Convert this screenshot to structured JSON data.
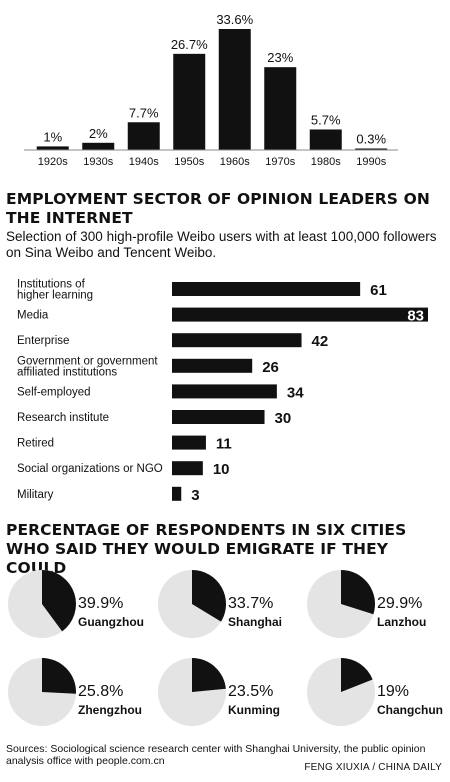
{
  "charts": {
    "decades": {
      "type": "bar",
      "categories": [
        "1920s",
        "1930s",
        "1940s",
        "1950s",
        "1960s",
        "1970s",
        "1980s",
        "1990s"
      ],
      "values": [
        1,
        2,
        7.7,
        26.7,
        33.6,
        23,
        5.7,
        0.3
      ],
      "value_labels": [
        "1%",
        "2%",
        "7.7%",
        "26.7%",
        "33.6%",
        "23%",
        "5.7%",
        "0.3%"
      ],
      "ylim": [
        0,
        33.6
      ]
    },
    "sectors": {
      "title": "EMPLOYMENT SECTOR OF OPINION LEADERS ON THE INTERNET",
      "subtitle": "Selection of 300 high-profile Weibo users with at least 100,000 followers on Sina Weibo and Tencent Weibo.",
      "type": "bar",
      "orientation": "horizontal",
      "items": [
        {
          "label": [
            "Institutions of",
            "higher learning"
          ],
          "value": 61
        },
        {
          "label": [
            "Media"
          ],
          "value": 83
        },
        {
          "label": [
            "Enterprise"
          ],
          "value": 42
        },
        {
          "label": [
            "Government or government",
            "affiliated institutions"
          ],
          "value": 26
        },
        {
          "label": [
            "Self-employed"
          ],
          "value": 34
        },
        {
          "label": [
            "Research institute"
          ],
          "value": 30
        },
        {
          "label": [
            "Retired"
          ],
          "value": 11
        },
        {
          "label": [
            "Social organizations or NGO"
          ],
          "value": 10
        },
        {
          "label": [
            "Military"
          ],
          "value": 3
        }
      ],
      "xlim": [
        0,
        83
      ]
    },
    "emigrate": {
      "title": "PERCENTAGE OF RESPONDENTS IN SIX CITIES WHO SAID THEY WOULD EMIGRATE IF THEY COULD",
      "type": "pie",
      "cities": [
        {
          "name": "Guangzhou",
          "value": 39.9,
          "label": "39.9%"
        },
        {
          "name": "Shanghai",
          "value": 33.7,
          "label": "33.7%"
        },
        {
          "name": "Lanzhou",
          "value": 29.9,
          "label": "29.9%"
        },
        {
          "name": "Zhengzhou",
          "value": 25.8,
          "label": "25.8%"
        },
        {
          "name": "Kunming",
          "value": 23.5,
          "label": "23.5%"
        },
        {
          "name": "Changchun",
          "value": 19,
          "label": "19%"
        }
      ]
    }
  },
  "footer": {
    "sources": "Sources: Sociological science research center with Shanghai University, the public opinion analysis office with people.com.cn",
    "credit": "FENG XIUXIA / CHINA DAILY"
  },
  "colors": {
    "ink": "#111111",
    "pie_rest": "#e4e4e4",
    "axis": "#888888"
  }
}
